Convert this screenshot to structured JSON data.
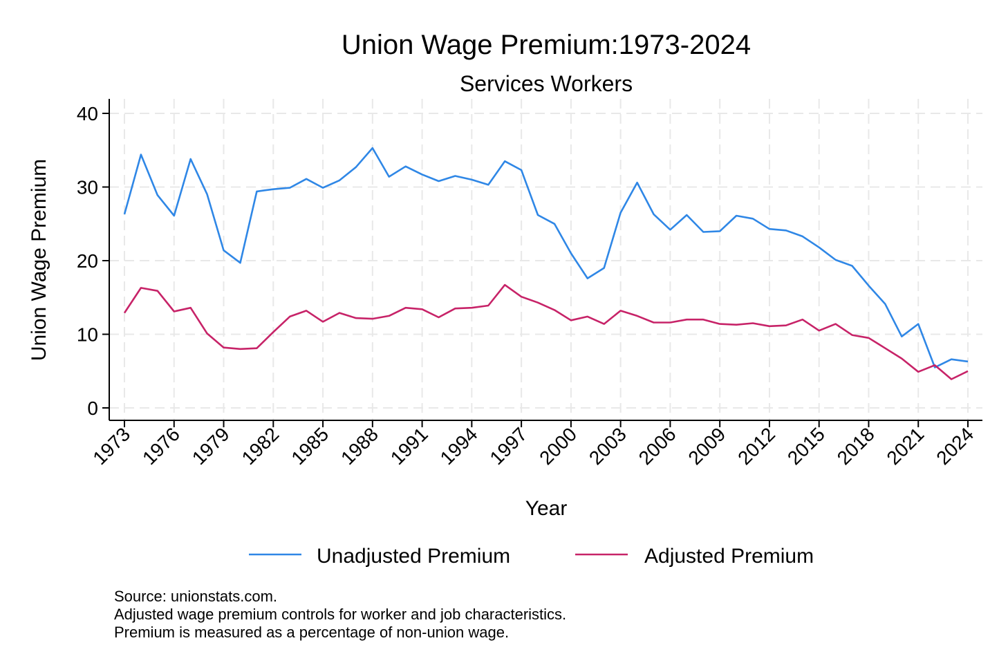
{
  "chart_data": {
    "type": "line",
    "title": "Union Wage Premium:1973-2024",
    "subtitle": "Services Workers",
    "xlabel": "Year",
    "ylabel": "Union Wage Premium",
    "xlim": [
      1973,
      2024
    ],
    "ylim": [
      0,
      40
    ],
    "yticks": [
      0,
      10,
      20,
      30,
      40
    ],
    "xticks": [
      1973,
      1976,
      1979,
      1982,
      1985,
      1988,
      1991,
      1994,
      1997,
      2000,
      2003,
      2006,
      2009,
      2012,
      2015,
      2018,
      2021,
      2024
    ],
    "xticks_note_dropped_from_data": true,
    "grid": true,
    "legend_position": "bottom",
    "x": [
      1973,
      1974,
      1975,
      1976,
      1977,
      1978,
      1979,
      1980,
      1981,
      1982,
      1983,
      1984,
      1985,
      1986,
      1987,
      1988,
      1989,
      1990,
      1991,
      1992,
      1993,
      1994,
      1995,
      1996,
      1997,
      1998,
      1999,
      2000,
      2001,
      2002,
      2003,
      2004,
      2005,
      2006,
      2007,
      2008,
      2009,
      2010,
      2011,
      2012,
      2013,
      2014,
      2015,
      2016,
      2017,
      2018,
      2019,
      2020,
      2021,
      2022,
      2023,
      2024
    ],
    "series": [
      {
        "name": "Unadjusted Premium",
        "color": "#2f87e6",
        "values": [
          26.3,
          34.4,
          28.9,
          26.1,
          33.8,
          29.0,
          21.4,
          19.7,
          29.4,
          29.7,
          29.9,
          31.1,
          29.9,
          30.9,
          32.7,
          35.3,
          31.4,
          32.8,
          31.7,
          30.8,
          31.5,
          31.0,
          30.3,
          33.5,
          32.3,
          26.2,
          25.0,
          21.0,
          17.6,
          19.0,
          26.5,
          30.6,
          26.3,
          24.2,
          26.2,
          23.9,
          24.0,
          26.1,
          25.7,
          24.3,
          24.1,
          23.3,
          21.8,
          20.1,
          19.3,
          16.6,
          14.1,
          9.7,
          11.4,
          5.5,
          6.6,
          6.3
        ]
      },
      {
        "name": "Adjusted Premium",
        "color": "#c72368",
        "values": [
          12.9,
          16.3,
          15.9,
          13.1,
          13.6,
          10.1,
          8.2,
          8.0,
          8.1,
          10.3,
          12.4,
          13.2,
          11.7,
          12.9,
          12.2,
          12.1,
          12.5,
          13.6,
          13.4,
          12.3,
          13.5,
          13.6,
          13.9,
          16.7,
          15.1,
          14.3,
          13.3,
          11.9,
          12.4,
          11.4,
          13.2,
          12.5,
          11.6,
          11.6,
          12.0,
          12.0,
          11.4,
          11.3,
          11.5,
          11.1,
          11.2,
          12.0,
          10.5,
          11.4,
          9.9,
          9.5,
          8.1,
          6.7,
          4.9,
          5.8,
          3.9,
          5.0
        ]
      }
    ],
    "notes": [
      "Source: unionstats.com.",
      "Adjusted wage premium controls for worker and job characteristics.",
      "Premium is measured as a percentage of non-union wage."
    ]
  }
}
